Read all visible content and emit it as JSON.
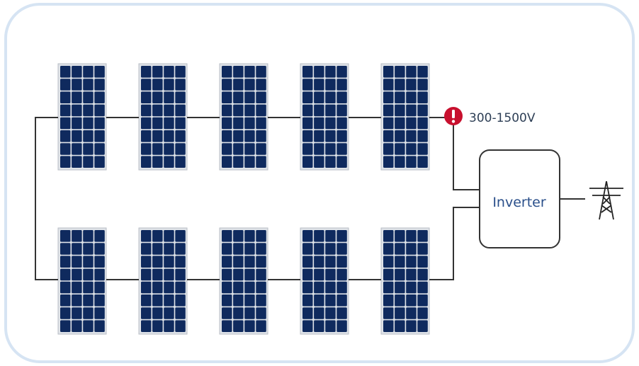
{
  "voltage_label": "300-1500V",
  "inverter": {
    "label": "Inverter"
  }
}
